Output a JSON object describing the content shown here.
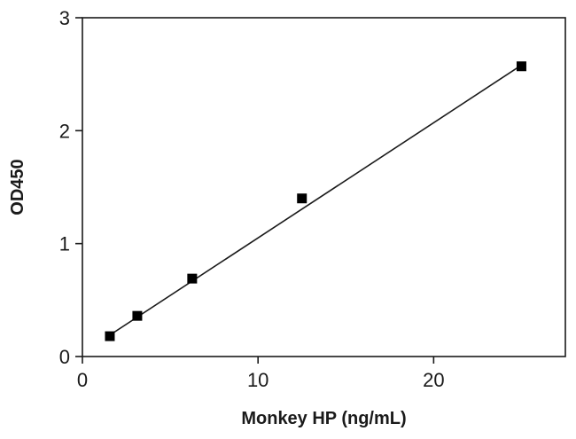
{
  "chart_data": {
    "type": "scatter",
    "title": "",
    "xlabel": "Monkey HP (ng/mL)",
    "ylabel": "OD450",
    "xlim": [
      0,
      27.5
    ],
    "ylim": [
      0,
      3
    ],
    "x_ticks": [
      0,
      10,
      20
    ],
    "y_ticks": [
      0,
      1,
      2,
      3
    ],
    "grid": false,
    "legend": "none",
    "series": [
      {
        "marker": "square",
        "color": "#000000",
        "x": [
          1.5625,
          3.125,
          6.25,
          12.5,
          25
        ],
        "y": [
          0.18,
          0.36,
          0.69,
          1.4,
          2.57
        ]
      }
    ],
    "fit_line": {
      "type": "linear",
      "x": [
        1.5625,
        25
      ],
      "y": [
        0.19,
        2.58
      ],
      "color": "#1a1a1a"
    }
  }
}
